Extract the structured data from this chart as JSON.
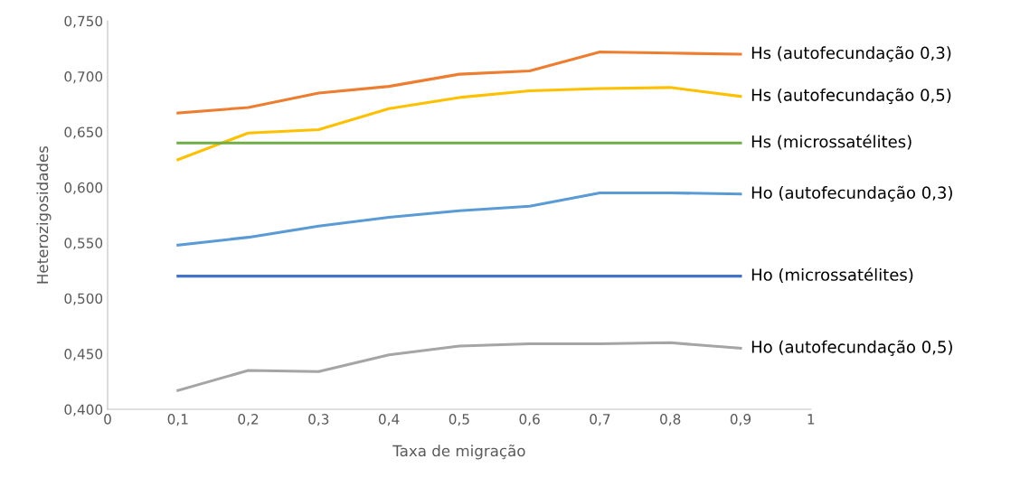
{
  "chart_data": {
    "type": "line",
    "xlabel": "Taxa de migração",
    "ylabel": "Heterozigosidades",
    "x": [
      0.1,
      0.2,
      0.3,
      0.4,
      0.5,
      0.6,
      0.7,
      0.8,
      0.9
    ],
    "series": [
      {
        "name": "Hs (autofecundação 0,3)",
        "color": "#ed7d31",
        "values": [
          0.667,
          0.672,
          0.685,
          0.691,
          0.702,
          0.705,
          0.722,
          0.721,
          0.72
        ]
      },
      {
        "name": "Hs (autofecundação 0,5)",
        "color": "#ffc000",
        "values": [
          0.625,
          0.649,
          0.652,
          0.671,
          0.681,
          0.687,
          0.689,
          0.69,
          0.682
        ]
      },
      {
        "name": "Hs (microssatélites)",
        "color": "#70ad47",
        "values": [
          0.64,
          0.64,
          0.64,
          0.64,
          0.64,
          0.64,
          0.64,
          0.64,
          0.64
        ]
      },
      {
        "name": "Ho (autofecundação 0,3)",
        "color": "#5b9bd5",
        "values": [
          0.548,
          0.555,
          0.565,
          0.573,
          0.579,
          0.583,
          0.595,
          0.595,
          0.594
        ]
      },
      {
        "name": "Ho (microssatélites)",
        "color": "#4472c4",
        "values": [
          0.52,
          0.52,
          0.52,
          0.52,
          0.52,
          0.52,
          0.52,
          0.52,
          0.52
        ]
      },
      {
        "name": "Ho (autofecundação 0,5)",
        "color": "#a5a5a5",
        "values": [
          0.417,
          0.435,
          0.434,
          0.449,
          0.457,
          0.459,
          0.459,
          0.46,
          0.455
        ]
      }
    ],
    "xlim": [
      0,
      1
    ],
    "ylim": [
      0.4,
      0.75
    ],
    "xticks": [
      0,
      {
        "value": 0.1,
        "label": "0,1"
      },
      {
        "value": 0.2,
        "label": "0,2"
      },
      {
        "value": 0.3,
        "label": "0,3"
      },
      {
        "value": 0.4,
        "label": "0,4"
      },
      {
        "value": 0.5,
        "label": "0,5"
      },
      {
        "value": 0.6,
        "label": "0,6"
      },
      {
        "value": 0.7,
        "label": "0,7"
      },
      {
        "value": 0.8,
        "label": "0,8"
      },
      {
        "value": 0.9,
        "label": "0,9"
      },
      1
    ],
    "yticks": [
      {
        "value": 0.4,
        "label": "0,400"
      },
      {
        "value": 0.45,
        "label": "0,450"
      },
      {
        "value": 0.5,
        "label": "0,500"
      },
      {
        "value": 0.55,
        "label": "0,550"
      },
      {
        "value": 0.6,
        "label": "0,600"
      },
      {
        "value": 0.65,
        "label": "0,650"
      },
      {
        "value": 0.7,
        "label": "0,700"
      },
      {
        "value": 0.75,
        "label": "0,750"
      }
    ],
    "grid": false,
    "legend": false,
    "marker": "none",
    "line_style": "solid"
  }
}
